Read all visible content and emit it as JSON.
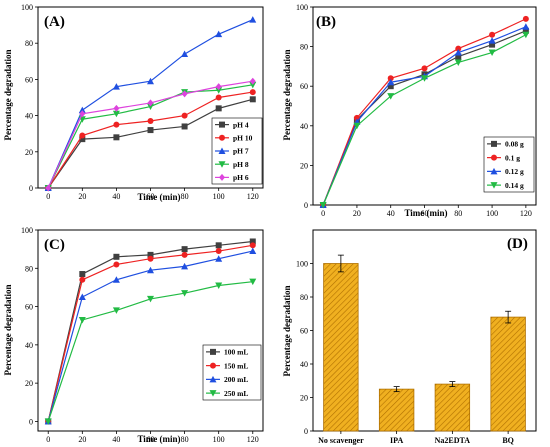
{
  "chart_data": [
    {
      "panel_label": "(A)",
      "type": "line",
      "xlabel": "Time (min)",
      "ylabel": "Percentage degradation",
      "xlim": [
        -6,
        126
      ],
      "ylim": [
        0,
        100
      ],
      "xticks": [
        0,
        20,
        40,
        60,
        80,
        100,
        120
      ],
      "yticks": [
        0,
        20,
        40,
        60,
        80,
        100
      ],
      "legend_position": "bottom-right",
      "x": [
        0,
        20,
        40,
        60,
        80,
        100,
        120
      ],
      "series": [
        {
          "name": "pH 4",
          "color": "#404040",
          "marker": "square",
          "values": [
            0,
            27,
            28,
            32,
            34,
            44,
            49
          ]
        },
        {
          "name": "pH 10",
          "color": "#ee2222",
          "marker": "circle",
          "values": [
            0,
            29,
            35,
            37,
            40,
            50,
            53
          ]
        },
        {
          "name": "pH 7",
          "color": "#1f4fe0",
          "marker": "triangle-up",
          "values": [
            0,
            43,
            56,
            59,
            74,
            85,
            93
          ]
        },
        {
          "name": "pH 8",
          "color": "#22bb44",
          "marker": "triangle-down",
          "values": [
            0,
            38,
            41,
            45,
            53,
            54,
            57
          ]
        },
        {
          "name": "pH 6",
          "color": "#dd44dd",
          "marker": "diamond",
          "values": [
            0,
            41,
            44,
            47,
            52,
            56,
            59
          ]
        }
      ]
    },
    {
      "panel_label": "(B)",
      "type": "line",
      "xlabel": "Time (min)",
      "ylabel": "Percentage degradation",
      "xlim": [
        -6,
        126
      ],
      "ylim": [
        0,
        100
      ],
      "xticks": [
        0,
        20,
        40,
        60,
        80,
        100,
        120
      ],
      "yticks": [
        0,
        20,
        40,
        60,
        80,
        100
      ],
      "legend_position": "bottom-right",
      "x": [
        0,
        20,
        40,
        60,
        80,
        100,
        120
      ],
      "series": [
        {
          "name": "0.08 g",
          "color": "#404040",
          "marker": "square",
          "values": [
            0,
            43,
            60,
            66,
            75,
            81,
            88
          ]
        },
        {
          "name": "0.1 g",
          "color": "#ee2222",
          "marker": "circle",
          "values": [
            0,
            44,
            64,
            69,
            79,
            86,
            94
          ]
        },
        {
          "name": "0.12 g",
          "color": "#1f4fe0",
          "marker": "triangle-up",
          "values": [
            0,
            42,
            62,
            65,
            77,
            83,
            90
          ]
        },
        {
          "name": "0.14 g",
          "color": "#22bb44",
          "marker": "triangle-down",
          "values": [
            0,
            40,
            55,
            64,
            72,
            77,
            86
          ]
        }
      ]
    },
    {
      "panel_label": "(C)",
      "type": "line",
      "xlabel": "Time (min)",
      "ylabel": "Percentage degradation",
      "xlim": [
        -6,
        126
      ],
      "ylim": [
        -5,
        100
      ],
      "xticks": [
        0,
        20,
        40,
        60,
        80,
        100,
        120
      ],
      "yticks": [
        0,
        20,
        40,
        60,
        80,
        100
      ],
      "legend_position": "bottom-right",
      "x": [
        0,
        20,
        40,
        60,
        80,
        100,
        120
      ],
      "series": [
        {
          "name": "100 mL",
          "color": "#404040",
          "marker": "square",
          "values": [
            0,
            77,
            86,
            87,
            90,
            92,
            94
          ]
        },
        {
          "name": "150 mL",
          "color": "#ee2222",
          "marker": "circle",
          "values": [
            0,
            74,
            82,
            85,
            87,
            89,
            92
          ]
        },
        {
          "name": "200 mL",
          "color": "#1f4fe0",
          "marker": "triangle-up",
          "values": [
            0,
            65,
            74,
            79,
            81,
            85,
            89
          ]
        },
        {
          "name": "250 mL",
          "color": "#22bb44",
          "marker": "triangle-down",
          "values": [
            0,
            53,
            58,
            64,
            67,
            71,
            73
          ]
        }
      ]
    },
    {
      "panel_label": "(D)",
      "type": "bar",
      "xlabel": "",
      "ylabel": "Percentage degradation",
      "ylim": [
        0,
        120
      ],
      "yticks": [
        0,
        20,
        40,
        60,
        80,
        100
      ],
      "categories": [
        "No scavenger",
        "IPA",
        "Na2EDTA",
        "BQ"
      ],
      "values": [
        100,
        25,
        28,
        68
      ],
      "errors": [
        5,
        1.5,
        1.5,
        3.5
      ],
      "bar_color": "#f0b020",
      "edge_color": "#b07000"
    }
  ]
}
